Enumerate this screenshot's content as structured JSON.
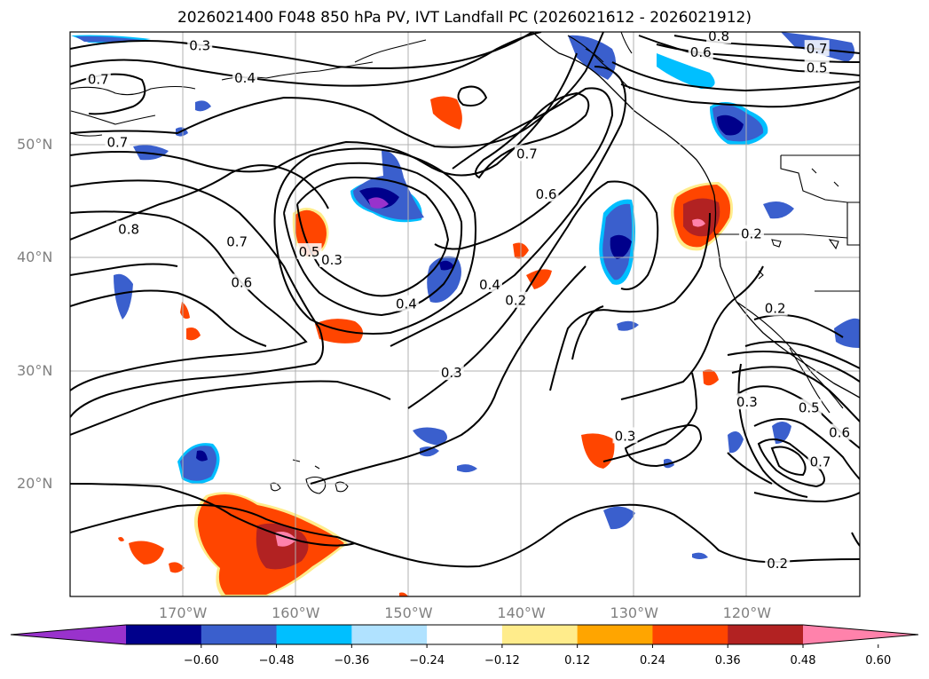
{
  "title": "2026021400 F048 850 hPa PV, IVT Landfall PC (2026021612 - 2026021912)",
  "map": {
    "lon_range": [
      -180,
      -110
    ],
    "lat_range": [
      10,
      60
    ],
    "grid": true,
    "lat_ticks": [
      {
        "value": 50,
        "label": "50°N"
      },
      {
        "value": 40,
        "label": "40°N"
      },
      {
        "value": 30,
        "label": "30°N"
      },
      {
        "value": 20,
        "label": "20°N"
      }
    ],
    "lon_ticks": [
      {
        "value": -170,
        "label": "170°W"
      },
      {
        "value": -160,
        "label": "160°W"
      },
      {
        "value": -150,
        "label": "150°W"
      },
      {
        "value": -140,
        "label": "140°W"
      },
      {
        "value": -130,
        "label": "130°W"
      },
      {
        "value": -120,
        "label": "120°W"
      }
    ],
    "contour_labels": [
      {
        "text": "0.3",
        "lon": -168.5,
        "lat": 58.8
      },
      {
        "text": "0.4",
        "lon": -164.5,
        "lat": 55.9
      },
      {
        "text": "0.7",
        "lon": -177.5,
        "lat": 55.8
      },
      {
        "text": "0.7",
        "lon": -175.8,
        "lat": 50.2
      },
      {
        "text": "0.8",
        "lon": -174.8,
        "lat": 42.5
      },
      {
        "text": "0.7",
        "lon": -165.2,
        "lat": 41.4
      },
      {
        "text": "0.6",
        "lon": -164.8,
        "lat": 37.8
      },
      {
        "text": "0.5",
        "lon": -158.8,
        "lat": 40.5
      },
      {
        "text": "0.3",
        "lon": -156.8,
        "lat": 39.8
      },
      {
        "text": "0.4",
        "lon": -150.2,
        "lat": 35.9
      },
      {
        "text": "0.7",
        "lon": -139.5,
        "lat": 49.2
      },
      {
        "text": "0.6",
        "lon": -137.8,
        "lat": 45.6
      },
      {
        "text": "0.4",
        "lon": -142.8,
        "lat": 37.6
      },
      {
        "text": "0.2",
        "lon": -140.5,
        "lat": 36.2
      },
      {
        "text": "0.3",
        "lon": -146.2,
        "lat": 29.8
      },
      {
        "text": "0.3",
        "lon": -130.8,
        "lat": 24.2
      },
      {
        "text": "0.8",
        "lon": -122.5,
        "lat": 59.6
      },
      {
        "text": "0.6",
        "lon": -124.1,
        "lat": 58.2
      },
      {
        "text": "0.7",
        "lon": -113.8,
        "lat": 58.5
      },
      {
        "text": "0.5",
        "lon": -113.8,
        "lat": 56.8
      },
      {
        "text": "0.2",
        "lon": -119.6,
        "lat": 42.1
      },
      {
        "text": "0.2",
        "lon": -117.5,
        "lat": 35.5
      },
      {
        "text": "0.3",
        "lon": -120.0,
        "lat": 27.2
      },
      {
        "text": "0.5",
        "lon": -114.5,
        "lat": 26.7
      },
      {
        "text": "0.6",
        "lon": -111.8,
        "lat": 24.5
      },
      {
        "text": "0.7",
        "lon": -113.5,
        "lat": 21.9
      },
      {
        "text": "0.2",
        "lon": -117.3,
        "lat": 12.9
      }
    ]
  },
  "colorbar": {
    "colors": [
      "#9932cc",
      "#00008b",
      "#3a5fcd",
      "#00bfff",
      "#b0e2ff",
      "#ffffff",
      "#ffec8b",
      "#ffa500",
      "#ff4500",
      "#b22222",
      "#ff82ab"
    ],
    "labels": [
      "−0.60",
      "−0.48",
      "−0.36",
      "−0.24",
      "−0.12",
      "0.12",
      "0.24",
      "0.36",
      "0.48",
      "0.60"
    ]
  }
}
